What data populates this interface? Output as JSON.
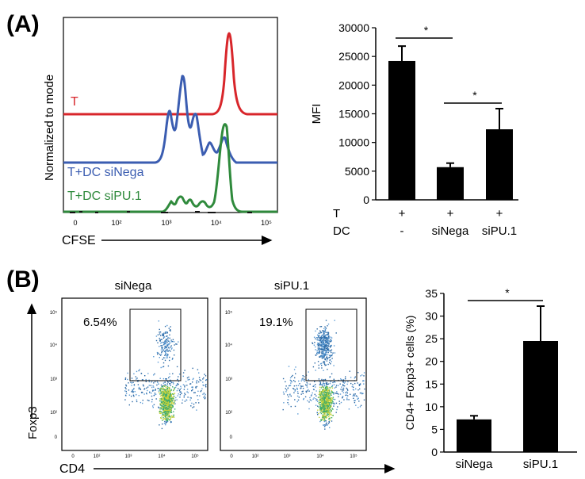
{
  "panel_a": {
    "label": "(A)",
    "histogram": {
      "y_label": "Normalized to mode",
      "x_label": "CFSE",
      "x_ticks": [
        "0",
        "10²",
        "10³",
        "10⁴",
        "10⁵"
      ],
      "tracks": [
        {
          "name": "T",
          "color": "#d8262b"
        },
        {
          "name": "T+DC siNega",
          "color": "#3b5db1"
        },
        {
          "name": "T+DC siPU.1",
          "color": "#2f8a3c"
        }
      ]
    }
  },
  "panel_b": {
    "label": "(B)",
    "flow": {
      "y_label": "Foxp3",
      "x_label": "CD4",
      "x_ticks": [
        "0",
        "10²",
        "10³",
        "10⁴",
        "10⁵"
      ],
      "y_ticks": [
        "0",
        "10²",
        "10³",
        "10⁴",
        "10⁵"
      ],
      "plots": [
        {
          "title": "siNega",
          "percent": "6.54%"
        },
        {
          "title": "siPU.1",
          "percent": "19.1%"
        }
      ]
    }
  },
  "chart_data": [
    {
      "type": "bar",
      "title": "",
      "xlabel": "",
      "ylabel": "MFI",
      "ylim": [
        0,
        30000
      ],
      "yticks": [
        0,
        5000,
        10000,
        15000,
        20000,
        25000,
        30000
      ],
      "categories": [
        "T only",
        "T+DC siNega",
        "T+DC siPU.1"
      ],
      "values": [
        24200,
        5700,
        12300
      ],
      "errors": [
        2600,
        700,
        3600
      ],
      "condition_rows": [
        {
          "label": "T",
          "values": [
            "+",
            "+",
            "+"
          ]
        },
        {
          "label": "DC",
          "values": [
            "-",
            "siNega",
            "siPU.1"
          ]
        }
      ],
      "significance": [
        {
          "from": 0,
          "to": 1,
          "text": "*"
        },
        {
          "from": 1,
          "to": 2,
          "text": "*"
        }
      ]
    },
    {
      "type": "bar",
      "title": "",
      "xlabel": "",
      "ylabel": "CD4+ Foxp3+ cells (%)",
      "ylim": [
        0,
        35
      ],
      "yticks": [
        0,
        5,
        10,
        15,
        20,
        25,
        30,
        35
      ],
      "categories": [
        "siNega",
        "siPU.1"
      ],
      "values": [
        7.2,
        24.5
      ],
      "errors": [
        0.8,
        7.7
      ],
      "significance": [
        {
          "from": 0,
          "to": 1,
          "text": "*"
        }
      ]
    }
  ]
}
